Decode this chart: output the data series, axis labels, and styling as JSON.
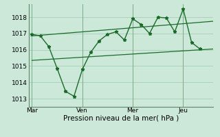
{
  "background_color": "#cce8d8",
  "grid_color": "#aaccb8",
  "line_color": "#1a6b2a",
  "vline_color": "#7aaa8a",
  "xlabel": "Pression niveau de la mer( hPa )",
  "ylim": [
    1012.5,
    1018.8
  ],
  "yticks": [
    1013,
    1014,
    1015,
    1016,
    1017,
    1018
  ],
  "day_labels": [
    "Mar",
    "Ven",
    "Mer",
    "Jeu"
  ],
  "day_positions": [
    0,
    3,
    6,
    9
  ],
  "xlim": [
    -0.2,
    10.8
  ],
  "main_x": [
    0,
    0.5,
    1,
    1.5,
    2,
    2.5,
    3,
    3.5,
    4,
    4.5,
    5,
    5.5,
    6,
    6.5,
    7,
    7.5,
    8,
    8.5,
    9,
    9.5,
    10
  ],
  "main_y": [
    1016.95,
    1016.85,
    1016.2,
    1014.85,
    1013.45,
    1013.15,
    1014.8,
    1015.85,
    1016.55,
    1016.95,
    1017.1,
    1016.6,
    1017.9,
    1017.55,
    1017.0,
    1018.0,
    1017.95,
    1017.1,
    1018.5,
    1016.45,
    1016.05
  ],
  "upper_line_x": [
    0,
    10.8
  ],
  "upper_line_y": [
    1016.85,
    1017.75
  ],
  "lower_line_x": [
    0,
    10.8
  ],
  "lower_line_y": [
    1015.35,
    1016.05
  ],
  "vline_positions": [
    0,
    3,
    6,
    9
  ],
  "marker_size": 3.5,
  "tick_fontsize": 6.5,
  "xlabel_fontsize": 7.5
}
